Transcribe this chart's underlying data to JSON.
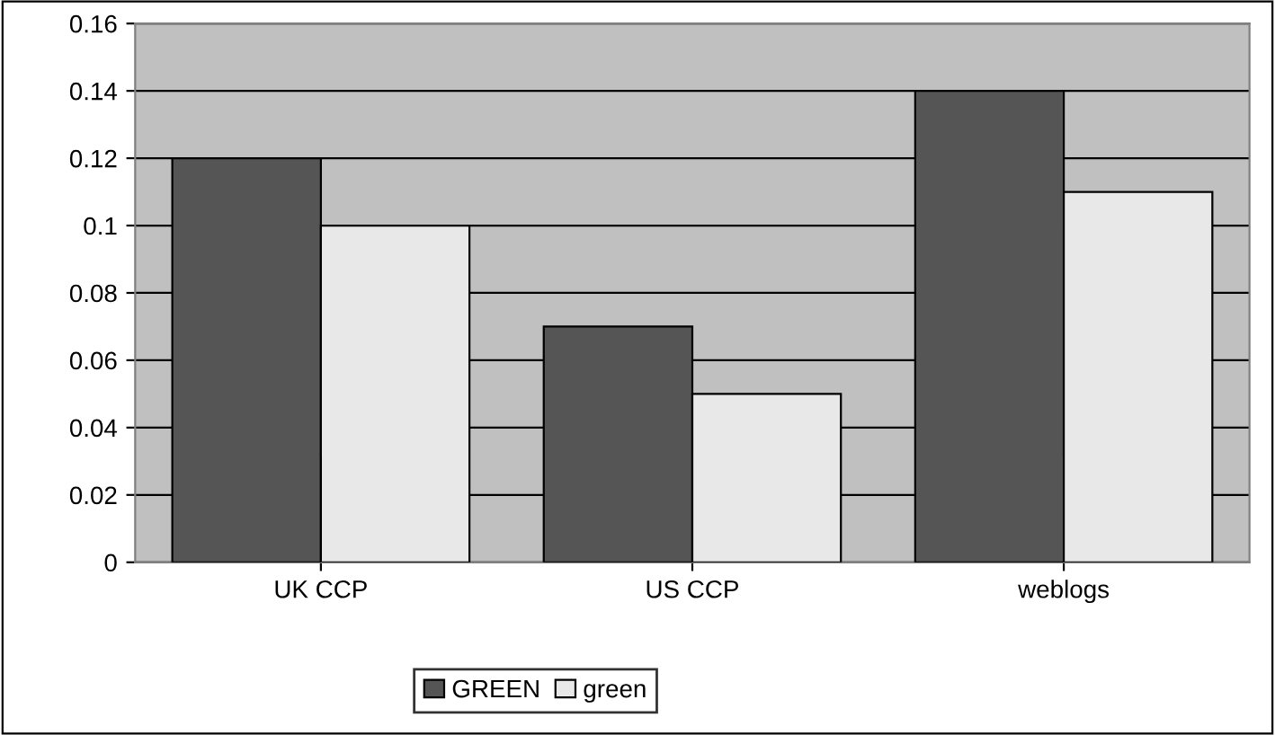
{
  "chart_data": {
    "type": "bar",
    "categories": [
      "UK CCP",
      "US CCP",
      "weblogs"
    ],
    "series": [
      {
        "name": "GREEN",
        "color": "#555555",
        "values": [
          0.12,
          0.07,
          0.14
        ]
      },
      {
        "name": "green",
        "color": "#e8e8e8",
        "values": [
          0.1,
          0.05,
          0.11
        ]
      }
    ],
    "ylim": [
      0,
      0.16
    ],
    "yticks": [
      0,
      0.02,
      0.04,
      0.06,
      0.08,
      0.1,
      0.12,
      0.14,
      0.16
    ],
    "grid": "y",
    "legend": "bottom"
  }
}
